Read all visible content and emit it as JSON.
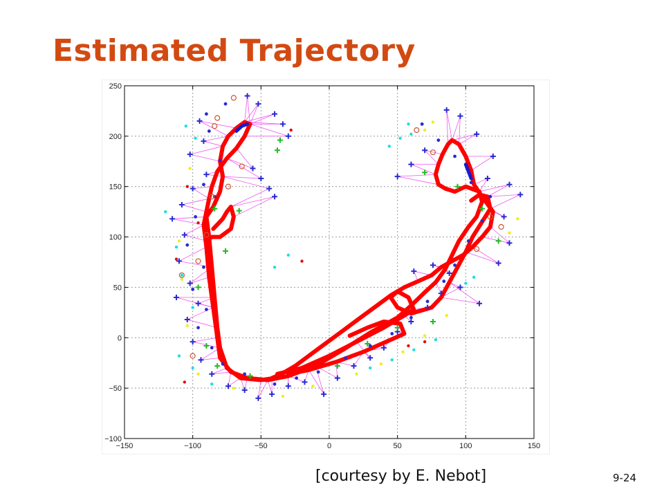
{
  "slide": {
    "title": "Estimated Trajectory",
    "caption": "[courtesy by E. Nebot]",
    "page_number": "9-24"
  },
  "chart_data": {
    "type": "scatter",
    "title": "",
    "xlabel": "",
    "ylabel": "",
    "xlim": [
      -150,
      150
    ],
    "ylim": [
      -100,
      250
    ],
    "xticks": [
      -150,
      -100,
      -50,
      0,
      50,
      100,
      150
    ],
    "yticks": [
      -100,
      -50,
      0,
      50,
      100,
      150,
      200,
      250
    ],
    "grid": true,
    "colors": {
      "trajectory": "#ff0000",
      "trajectory_alt": "#1a1acc",
      "landmark": "#2a2ad0",
      "observation_line": "#ee44ee",
      "green": "#22bb22",
      "cyan": "#22dddd",
      "yellow": "#eeee22",
      "red": "#dd1111"
    },
    "series": [
      {
        "kind": "trajectory",
        "points": [
          [
            -40,
            -40
          ],
          [
            -50,
            -42
          ],
          [
            -65,
            -40
          ],
          [
            -75,
            -30
          ],
          [
            -80,
            -10
          ],
          [
            -82,
            10
          ],
          [
            -84,
            40
          ],
          [
            -86,
            70
          ],
          [
            -88,
            100
          ],
          [
            -90,
            120
          ],
          [
            -85,
            130
          ],
          [
            -80,
            145
          ],
          [
            -78,
            160
          ],
          [
            -80,
            175
          ],
          [
            -78,
            190
          ],
          [
            -74,
            200
          ],
          [
            -68,
            208
          ],
          [
            -62,
            214
          ],
          [
            -58,
            212
          ],
          [
            -62,
            200
          ],
          [
            -68,
            188
          ],
          [
            -75,
            178
          ],
          [
            -82,
            165
          ],
          [
            -86,
            150
          ],
          [
            -88,
            138
          ],
          [
            -90,
            125
          ],
          [
            -92,
            112
          ],
          [
            -90,
            90
          ],
          [
            -88,
            60
          ],
          [
            -85,
            30
          ],
          [
            -82,
            0
          ],
          [
            -80,
            -20
          ],
          [
            -72,
            -34
          ],
          [
            -60,
            -40
          ],
          [
            -45,
            -42
          ],
          [
            -30,
            -38
          ],
          [
            -10,
            -28
          ],
          [
            10,
            -12
          ],
          [
            30,
            5
          ],
          [
            50,
            20
          ],
          [
            60,
            32
          ],
          [
            70,
            45
          ],
          [
            78,
            55
          ],
          [
            85,
            68
          ],
          [
            90,
            82
          ],
          [
            95,
            96
          ],
          [
            102,
            110
          ],
          [
            108,
            120
          ],
          [
            112,
            135
          ],
          [
            110,
            145
          ],
          [
            100,
            150
          ],
          [
            92,
            145
          ],
          [
            85,
            148
          ],
          [
            80,
            152
          ],
          [
            78,
            162
          ],
          [
            80,
            172
          ],
          [
            83,
            182
          ],
          [
            87,
            192
          ],
          [
            90,
            196
          ],
          [
            95,
            192
          ],
          [
            100,
            180
          ],
          [
            104,
            166
          ],
          [
            106,
            152
          ],
          [
            112,
            140
          ],
          [
            120,
            125
          ],
          [
            118,
            110
          ],
          [
            112,
            100
          ],
          [
            105,
            90
          ],
          [
            98,
            82
          ],
          [
            90,
            76
          ],
          [
            82,
            70
          ],
          [
            75,
            62
          ],
          [
            65,
            56
          ],
          [
            55,
            50
          ],
          [
            45,
            42
          ],
          [
            35,
            32
          ],
          [
            25,
            22
          ],
          [
            15,
            12
          ],
          [
            5,
            2
          ],
          [
            -5,
            -8
          ],
          [
            -15,
            -18
          ],
          [
            -25,
            -28
          ],
          [
            -35,
            -36
          ],
          [
            -42,
            -40
          ]
        ]
      },
      {
        "kind": "trajectory",
        "points": [
          [
            -38,
            -36
          ],
          [
            -20,
            -30
          ],
          [
            0,
            -18
          ],
          [
            20,
            -4
          ],
          [
            40,
            10
          ],
          [
            55,
            22
          ],
          [
            62,
            28
          ],
          [
            58,
            40
          ],
          [
            50,
            46
          ],
          [
            45,
            40
          ],
          [
            50,
            30
          ],
          [
            60,
            24
          ],
          [
            75,
            30
          ],
          [
            82,
            40
          ],
          [
            88,
            55
          ],
          [
            94,
            70
          ],
          [
            100,
            85
          ],
          [
            105,
            100
          ],
          [
            112,
            115
          ],
          [
            118,
            128
          ],
          [
            116,
            140
          ],
          [
            110,
            142
          ],
          [
            104,
            136
          ]
        ]
      },
      {
        "kind": "trajectory",
        "points": [
          [
            -85,
            108
          ],
          [
            -78,
            118
          ],
          [
            -75,
            125
          ],
          [
            -72,
            130
          ],
          [
            -70,
            120
          ],
          [
            -72,
            108
          ],
          [
            -80,
            100
          ],
          [
            -86,
            100
          ],
          [
            -90,
            96
          ]
        ]
      },
      {
        "kind": "trajectory",
        "points": [
          [
            -30,
            -36
          ],
          [
            -15,
            -32
          ],
          [
            5,
            -24
          ],
          [
            25,
            -14
          ],
          [
            45,
            -2
          ],
          [
            55,
            4
          ],
          [
            52,
            14
          ],
          [
            40,
            16
          ],
          [
            28,
            10
          ],
          [
            15,
            2
          ]
        ]
      },
      {
        "kind": "trajectory_alt",
        "points": [
          [
            -68,
            205
          ],
          [
            -64,
            210
          ],
          [
            -60,
            212
          ]
        ]
      },
      {
        "kind": "trajectory_alt",
        "points": [
          [
            100,
            172
          ],
          [
            102,
            165
          ],
          [
            104,
            158
          ]
        ]
      }
    ],
    "landmarks": [
      [
        -95,
        215
      ],
      [
        -92,
        195
      ],
      [
        -102,
        182
      ],
      [
        -90,
        162
      ],
      [
        -100,
        148
      ],
      [
        -108,
        132
      ],
      [
        -115,
        118
      ],
      [
        -106,
        102
      ],
      [
        -110,
        76
      ],
      [
        -102,
        54
      ],
      [
        -112,
        40
      ],
      [
        -96,
        34
      ],
      [
        -104,
        18
      ],
      [
        -100,
        -4
      ],
      [
        -94,
        -22
      ],
      [
        -86,
        -36
      ],
      [
        -74,
        -48
      ],
      [
        -62,
        -52
      ],
      [
        -52,
        -60
      ],
      [
        -42,
        -56
      ],
      [
        -30,
        -48
      ],
      [
        -18,
        -44
      ],
      [
        -4,
        -56
      ],
      [
        6,
        -40
      ],
      [
        18,
        -28
      ],
      [
        30,
        -20
      ],
      [
        40,
        -10
      ],
      [
        50,
        6
      ],
      [
        60,
        16
      ],
      [
        72,
        30
      ],
      [
        82,
        44
      ],
      [
        62,
        66
      ],
      [
        76,
        72
      ],
      [
        88,
        64
      ],
      [
        96,
        50
      ],
      [
        110,
        34
      ],
      [
        124,
        74
      ],
      [
        132,
        94
      ],
      [
        128,
        120
      ],
      [
        140,
        142
      ],
      [
        132,
        152
      ],
      [
        116,
        158
      ],
      [
        120,
        180
      ],
      [
        108,
        202
      ],
      [
        96,
        220
      ],
      [
        86,
        226
      ],
      [
        70,
        186
      ],
      [
        60,
        172
      ],
      [
        50,
        160
      ],
      [
        -60,
        240
      ],
      [
        -52,
        232
      ],
      [
        -40,
        222
      ],
      [
        -34,
        212
      ],
      [
        -30,
        200
      ],
      [
        -56,
        168
      ],
      [
        -50,
        158
      ],
      [
        -44,
        148
      ],
      [
        -40,
        140
      ]
    ],
    "landmark_markers": [
      [
        -90,
        222
      ],
      [
        -76,
        232
      ],
      [
        -88,
        205
      ],
      [
        -80,
        176
      ],
      [
        -92,
        152
      ],
      [
        -84,
        140
      ],
      [
        -98,
        120
      ],
      [
        -104,
        92
      ],
      [
        -92,
        70
      ],
      [
        -100,
        48
      ],
      [
        -90,
        28
      ],
      [
        -96,
        10
      ],
      [
        -86,
        -10
      ],
      [
        -78,
        -26
      ],
      [
        -62,
        -36
      ],
      [
        -40,
        -46
      ],
      [
        -24,
        -40
      ],
      [
        -8,
        -34
      ],
      [
        12,
        -20
      ],
      [
        30,
        -8
      ],
      [
        46,
        4
      ],
      [
        60,
        20
      ],
      [
        72,
        36
      ],
      [
        84,
        56
      ],
      [
        92,
        72
      ],
      [
        102,
        96
      ],
      [
        112,
        116
      ],
      [
        118,
        140
      ],
      [
        104,
        154
      ],
      [
        92,
        180
      ],
      [
        80,
        196
      ],
      [
        68,
        212
      ]
    ],
    "cyan_points": [
      [
        -105,
        210
      ],
      [
        -98,
        198
      ],
      [
        -120,
        125
      ],
      [
        -112,
        90
      ],
      [
        -108,
        62
      ],
      [
        -100,
        30
      ],
      [
        -110,
        -18
      ],
      [
        -100,
        -30
      ],
      [
        -86,
        -46
      ],
      [
        60,
        202
      ],
      [
        58,
        212
      ],
      [
        52,
        198
      ],
      [
        44,
        190
      ],
      [
        30,
        -30
      ],
      [
        46,
        -22
      ],
      [
        62,
        -12
      ],
      [
        78,
        -2
      ],
      [
        100,
        54
      ],
      [
        106,
        60
      ],
      [
        -40,
        70
      ],
      [
        -30,
        82
      ]
    ],
    "yellow_points": [
      [
        -102,
        168
      ],
      [
        -110,
        96
      ],
      [
        -108,
        58
      ],
      [
        -104,
        12
      ],
      [
        -96,
        -36
      ],
      [
        -70,
        -50
      ],
      [
        -34,
        -58
      ],
      [
        -12,
        -48
      ],
      [
        20,
        -36
      ],
      [
        38,
        -26
      ],
      [
        54,
        -14
      ],
      [
        70,
        2
      ],
      [
        86,
        22
      ],
      [
        70,
        206
      ],
      [
        76,
        214
      ],
      [
        132,
        104
      ],
      [
        138,
        118
      ]
    ],
    "red_points": [
      [
        -104,
        150
      ],
      [
        -96,
        114
      ],
      [
        -112,
        78
      ],
      [
        -106,
        -44
      ],
      [
        -28,
        206
      ],
      [
        70,
        -4
      ],
      [
        58,
        -8
      ],
      [
        -20,
        76
      ]
    ],
    "green_points": [
      [
        -36,
        196
      ],
      [
        -38,
        186
      ],
      [
        -84,
        128
      ],
      [
        -76,
        86
      ],
      [
        -96,
        50
      ],
      [
        -90,
        -8
      ],
      [
        -82,
        -28
      ],
      [
        -58,
        -38
      ],
      [
        6,
        -28
      ],
      [
        28,
        -6
      ],
      [
        50,
        10
      ],
      [
        76,
        16
      ],
      [
        112,
        128
      ],
      [
        124,
        96
      ],
      [
        94,
        150
      ],
      [
        70,
        164
      ],
      [
        -66,
        126
      ]
    ],
    "circle_markers": [
      [
        -70,
        238
      ],
      [
        -82,
        218
      ],
      [
        -64,
        170
      ],
      [
        -86,
        140
      ],
      [
        -90,
        102
      ],
      [
        -96,
        76
      ],
      [
        -108,
        62
      ],
      [
        -100,
        -18
      ],
      [
        64,
        206
      ],
      [
        76,
        184
      ],
      [
        108,
        88
      ],
      [
        118,
        120
      ],
      [
        126,
        110
      ],
      [
        -84,
        210
      ],
      [
        -74,
        150
      ]
    ]
  }
}
